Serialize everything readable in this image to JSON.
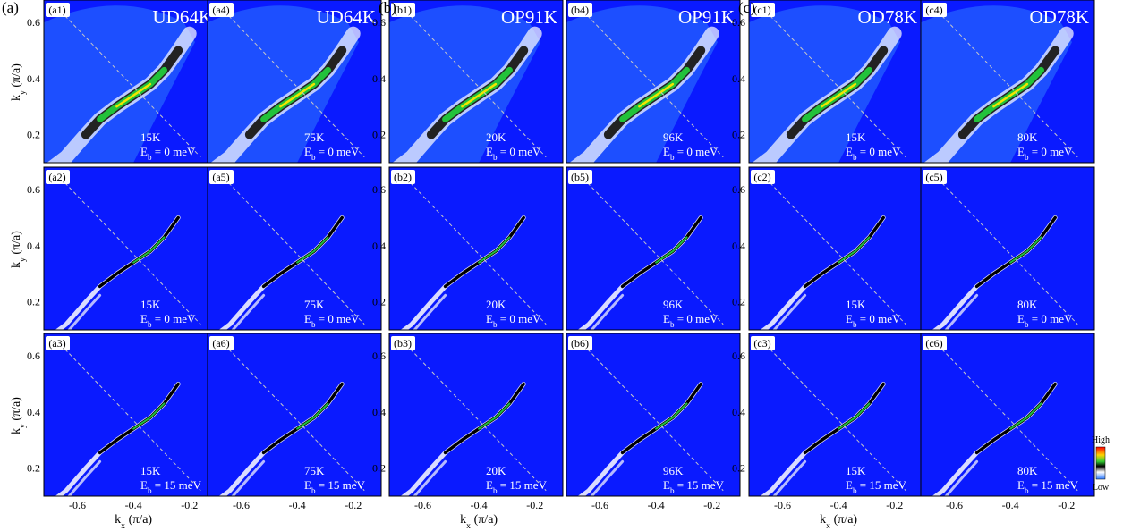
{
  "group_labels": [
    "(a)",
    "(b)",
    "(c)"
  ],
  "axes": {
    "y_label_main": "k",
    "y_label_sub": "y",
    "y_label_unit": " (π/a)",
    "x_label_main": "k",
    "x_label_sub": "x",
    "x_label_unit": " (π/a)",
    "y_ticks": [
      "0.6",
      "0.4",
      "0.2"
    ],
    "x_ticks": [
      "-0.6",
      "-0.4",
      "-0.2"
    ]
  },
  "column_titles": [
    "UD64K",
    "UD64K",
    "OP91K",
    "OP91K",
    "OD78K",
    "OD78K"
  ],
  "panels": [
    {
      "tag": "(a1)",
      "temp": "15K",
      "energy": "0 meV"
    },
    {
      "tag": "(a4)",
      "temp": "75K",
      "energy": "0 meV"
    },
    {
      "tag": "(b1)",
      "temp": "20K",
      "energy": "0 meV"
    },
    {
      "tag": "(b4)",
      "temp": "96K",
      "energy": "0 meV"
    },
    {
      "tag": "(c1)",
      "temp": "15K",
      "energy": "0 meV"
    },
    {
      "tag": "(c4)",
      "temp": "80K",
      "energy": "0 meV"
    },
    {
      "tag": "(a2)",
      "temp": "15K",
      "energy": "0 meV"
    },
    {
      "tag": "(a5)",
      "temp": "75K",
      "energy": "0 meV"
    },
    {
      "tag": "(b2)",
      "temp": "20K",
      "energy": "0 meV"
    },
    {
      "tag": "(b5)",
      "temp": "96K",
      "energy": "0 meV"
    },
    {
      "tag": "(c2)",
      "temp": "15K",
      "energy": "0 meV"
    },
    {
      "tag": "(c5)",
      "temp": "80K",
      "energy": "0 meV"
    },
    {
      "tag": "(a3)",
      "temp": "15K",
      "energy": "15 meV"
    },
    {
      "tag": "(a6)",
      "temp": "75K",
      "energy": "15 meV"
    },
    {
      "tag": "(b3)",
      "temp": "20K",
      "energy": "15 meV"
    },
    {
      "tag": "(b6)",
      "temp": "96K",
      "energy": "15 meV"
    },
    {
      "tag": "(c3)",
      "temp": "15K",
      "energy": "15 meV"
    },
    {
      "tag": "(c6)",
      "temp": "80K",
      "energy": "15 meV"
    }
  ],
  "energy_prefix_main": "E",
  "energy_prefix_sub": "b",
  "energy_prefix_eq": " = ",
  "colorbar": {
    "high": "High",
    "low": "Low"
  },
  "colors": {
    "background_blue": "#0a1aff",
    "wedge_blue": "#2e7bff",
    "dashed_line": "#c8c8c8",
    "band_black": "#000000",
    "band_green": "#22c23a",
    "band_yellow": "#f2e600",
    "band_white": "#ffffff"
  }
}
